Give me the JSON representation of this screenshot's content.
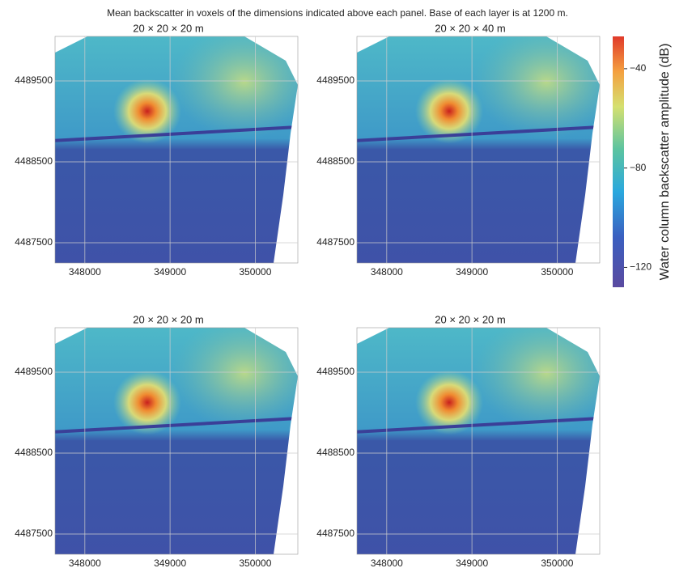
{
  "figure_title": "Mean backscatter in voxels of the dimensions indicated above each panel.  Base of each layer is at 1200 m.",
  "colorbar": {
    "label": "Water column backscatter amplitude (dB)",
    "lim": [
      -128,
      -27
    ],
    "ticks": [
      {
        "value": -40,
        "label": "−40"
      },
      {
        "value": -80,
        "label": "−80"
      },
      {
        "value": -120,
        "label": "−120"
      }
    ]
  },
  "chart_data": [
    {
      "type": "heatmap",
      "title": "20 × 20 × 20 m",
      "xlim": [
        347650,
        350500
      ],
      "xticks": [
        348000,
        349000,
        350000
      ],
      "ylim": [
        4487250,
        4490050
      ],
      "yticks": [
        4487500,
        4488500,
        4489500
      ],
      "grid": true
    },
    {
      "type": "heatmap",
      "title": "20 × 20 × 40 m",
      "xlim": [
        347650,
        350500
      ],
      "xticks": [
        348000,
        349000,
        350000
      ],
      "ylim": [
        4487250,
        4490050
      ],
      "yticks": [
        4487500,
        4488500,
        4489500
      ],
      "grid": true
    },
    {
      "type": "heatmap",
      "title": "20 × 20 × 20 m",
      "xlim": [
        347650,
        350500
      ],
      "xticks": [
        348000,
        349000,
        350000
      ],
      "ylim": [
        4487250,
        4490050
      ],
      "yticks": [
        4487500,
        4488500,
        4489500
      ],
      "grid": true
    },
    {
      "type": "heatmap",
      "title": "20 × 20 × 20 m",
      "xlim": [
        347650,
        350500
      ],
      "xticks": [
        348000,
        349000,
        350000
      ],
      "ylim": [
        4487250,
        4490050
      ],
      "yticks": [
        4487500,
        4488500,
        4489500
      ],
      "grid": true
    }
  ]
}
